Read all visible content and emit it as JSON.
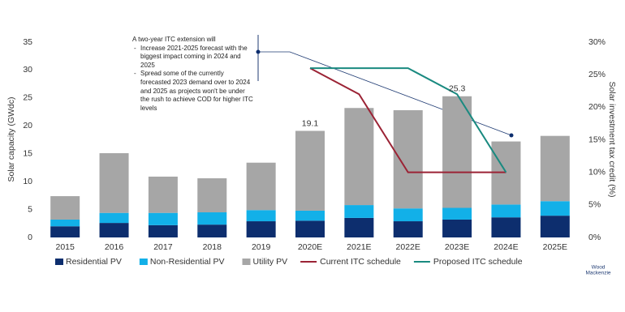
{
  "chart_data": {
    "type": "bar",
    "stacked": true,
    "y_label": "Solar capacity (GWdc)",
    "y2_label": "Solar investment tax credit (%)",
    "categories": [
      "2015",
      "2016",
      "2017",
      "2018",
      "2019",
      "2020E",
      "2021E",
      "2022E",
      "2023E",
      "2024E",
      "2025E"
    ],
    "series": [
      {
        "name": "Residential PV",
        "type": "bar",
        "color": "#0d2e6e",
        "values": [
          2.0,
          2.6,
          2.2,
          2.3,
          2.9,
          3.0,
          3.5,
          2.9,
          3.2,
          3.6,
          3.9
        ]
      },
      {
        "name": "Non-Residential PV",
        "type": "bar",
        "color": "#12b0e8",
        "values": [
          1.2,
          1.8,
          2.2,
          2.2,
          2.0,
          1.8,
          2.3,
          2.3,
          2.1,
          2.3,
          2.6
        ]
      },
      {
        "name": "Utility PV",
        "type": "bar",
        "color": "#a6a6a6",
        "values": [
          4.2,
          10.7,
          6.5,
          6.1,
          8.5,
          14.3,
          17.4,
          17.6,
          20.0,
          11.3,
          11.7
        ]
      },
      {
        "name": "Current ITC schedule",
        "type": "line",
        "axis": "y2",
        "color": "#9b2335",
        "values": [
          null,
          null,
          null,
          null,
          null,
          26,
          22,
          10,
          10,
          10,
          null
        ]
      },
      {
        "name": "Proposed ITC schedule",
        "type": "line",
        "axis": "y2",
        "color": "#1a8a80",
        "values": [
          null,
          null,
          null,
          null,
          null,
          26,
          26,
          26,
          22,
          10,
          null
        ]
      }
    ],
    "total_labels": [
      null,
      null,
      null,
      null,
      null,
      "19.1",
      null,
      null,
      "25.3",
      null,
      null
    ],
    "ylim": [
      0,
      35
    ],
    "yticks": [
      0,
      5,
      10,
      15,
      20,
      25,
      30,
      35
    ],
    "y2lim": [
      0,
      30
    ],
    "y2ticks": [
      {
        "value": 0,
        "label": "0%"
      },
      {
        "value": 5,
        "label": "5%"
      },
      {
        "value": 10,
        "label": "10%"
      },
      {
        "value": 15,
        "label": "15%"
      },
      {
        "value": 20,
        "label": "20%"
      },
      {
        "value": 25,
        "label": "25%"
      },
      {
        "value": 30,
        "label": "30%"
      }
    ],
    "grid": false,
    "legend": "bottom",
    "annotation": {
      "heading": "A two-year ITC extension will",
      "bullets": [
        "Increase 2021-2025 forecast with the biggest impact coming in 2024 and 2025",
        "Spread some of the currently forecasted 2023 demand over to 2024 and 2025 as projects won't be under the rush to achieve COD for higher ITC levels"
      ]
    },
    "logo": [
      "Wood",
      "Mackenzie"
    ]
  }
}
